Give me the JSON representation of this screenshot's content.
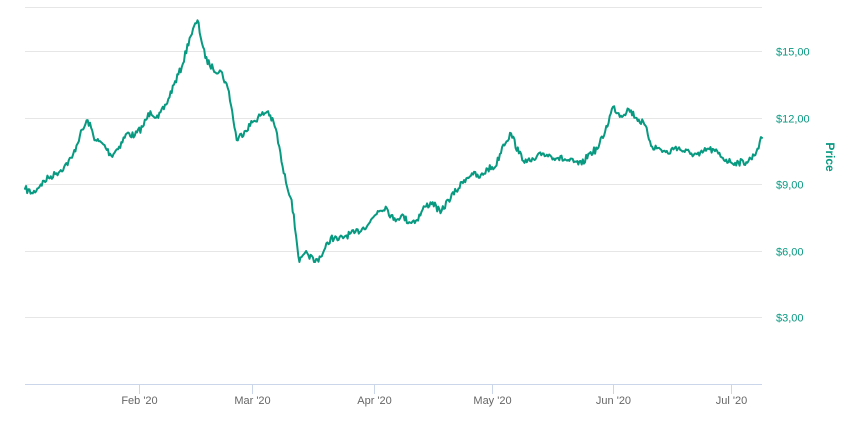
{
  "chart_data": {
    "type": "line",
    "title": "",
    "xlabel": "",
    "ylabel": "Price",
    "ylim": [
      0,
      17
    ],
    "y_ticks": [
      3,
      6,
      9,
      12,
      15
    ],
    "y_tick_labels": [
      "$3,00",
      "$6,00",
      "$9,00",
      "$12,00",
      "$15,00"
    ],
    "x_tick_dates": [
      "2020-02-01",
      "2020-03-01",
      "2020-04-01",
      "2020-05-01",
      "2020-06-01",
      "2020-07-01"
    ],
    "x_tick_labels": [
      "Feb '20",
      "Mar '20",
      "Apr '20",
      "May '20",
      "Jun '20",
      "Jul '20"
    ],
    "xlim": [
      "2020-01-03",
      "2020-07-09"
    ],
    "grid": true,
    "legend": "none",
    "line_color": "#089981",
    "series": [
      {
        "x": [
          "2020-01-03",
          "2020-01-05",
          "2020-01-07",
          "2020-01-09",
          "2020-01-11",
          "2020-01-13",
          "2020-01-15",
          "2020-01-17",
          "2020-01-19",
          "2020-01-21",
          "2020-01-23",
          "2020-01-25",
          "2020-01-27",
          "2020-01-29",
          "2020-01-31",
          "2020-02-02",
          "2020-02-04",
          "2020-02-06",
          "2020-02-08",
          "2020-02-10",
          "2020-02-12",
          "2020-02-14",
          "2020-02-16",
          "2020-02-18",
          "2020-02-20",
          "2020-02-22",
          "2020-02-24",
          "2020-02-26",
          "2020-02-28",
          "2020-03-01",
          "2020-03-03",
          "2020-03-05",
          "2020-03-07",
          "2020-03-09",
          "2020-03-11",
          "2020-03-13",
          "2020-03-15",
          "2020-03-17",
          "2020-03-19",
          "2020-03-21",
          "2020-03-23",
          "2020-03-25",
          "2020-03-27",
          "2020-03-29",
          "2020-03-31",
          "2020-04-02",
          "2020-04-04",
          "2020-04-06",
          "2020-04-08",
          "2020-04-10",
          "2020-04-12",
          "2020-04-14",
          "2020-04-16",
          "2020-04-18",
          "2020-04-20",
          "2020-04-22",
          "2020-04-24",
          "2020-04-26",
          "2020-04-28",
          "2020-04-30",
          "2020-05-02",
          "2020-05-04",
          "2020-05-06",
          "2020-05-08",
          "2020-05-10",
          "2020-05-12",
          "2020-05-14",
          "2020-05-16",
          "2020-05-18",
          "2020-05-20",
          "2020-05-22",
          "2020-05-24",
          "2020-05-26",
          "2020-05-28",
          "2020-05-30",
          "2020-06-01",
          "2020-06-03",
          "2020-06-05",
          "2020-06-07",
          "2020-06-09",
          "2020-06-11",
          "2020-06-13",
          "2020-06-15",
          "2020-06-17",
          "2020-06-19",
          "2020-06-21",
          "2020-06-23",
          "2020-06-25",
          "2020-06-27",
          "2020-06-29",
          "2020-07-01",
          "2020-07-03",
          "2020-07-05",
          "2020-07-07",
          "2020-07-09"
        ],
        "values": [
          8.8,
          8.6,
          9.0,
          9.3,
          9.5,
          9.8,
          10.2,
          11.2,
          11.9,
          11.0,
          10.8,
          10.3,
          10.7,
          11.3,
          11.2,
          11.6,
          12.3,
          12.0,
          12.6,
          13.5,
          14.3,
          15.6,
          16.4,
          14.7,
          14.2,
          14.1,
          13.2,
          11.0,
          11.4,
          11.8,
          12.1,
          12.3,
          11.5,
          9.5,
          8.3,
          5.5,
          5.9,
          5.5,
          5.9,
          6.6,
          6.5,
          6.7,
          6.8,
          7.0,
          7.3,
          7.8,
          8.0,
          7.4,
          7.6,
          7.3,
          7.4,
          8.0,
          8.2,
          7.7,
          8.3,
          8.7,
          9.2,
          9.5,
          9.3,
          9.7,
          9.8,
          10.8,
          11.3,
          10.4,
          10.0,
          10.1,
          10.4,
          10.3,
          10.2,
          10.1,
          10.0,
          9.9,
          10.4,
          10.6,
          11.4,
          12.5,
          12.1,
          12.4,
          12.0,
          11.7,
          10.7,
          10.6,
          10.4,
          10.7,
          10.5,
          10.4,
          10.3,
          10.6,
          10.5,
          10.2,
          10.0,
          10.0,
          10.0,
          10.3,
          11.1
        ]
      }
    ]
  }
}
